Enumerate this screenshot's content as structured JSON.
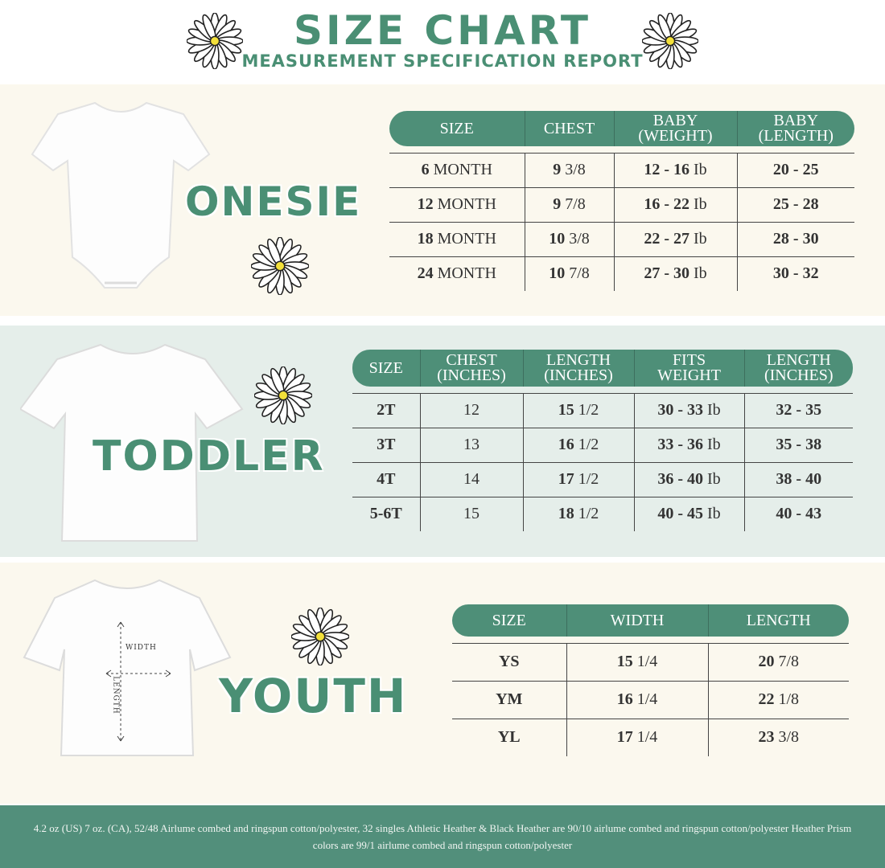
{
  "header": {
    "title": "SIZE CHART",
    "subtitle": "MEASUREMENT SPECIFICATION REPORT"
  },
  "colors": {
    "accent": "#4e8f78",
    "cream": "#fbf8ee",
    "mint": "#e5eeea"
  },
  "onesie": {
    "label": "ONESIE",
    "headers": [
      [
        "SIZE",
        ""
      ],
      [
        "CHEST",
        ""
      ],
      [
        "BABY",
        "(WEIGHT)"
      ],
      [
        "BABY",
        "(LENGTH)"
      ]
    ],
    "rows": [
      [
        [
          "6",
          "MONTH"
        ],
        [
          "9",
          "3/8"
        ],
        [
          "12 - 16",
          "Ib"
        ],
        [
          "20 - 25",
          ""
        ]
      ],
      [
        [
          "12",
          "MONTH"
        ],
        [
          "9",
          "7/8"
        ],
        [
          "16 - 22",
          "Ib"
        ],
        [
          "25 - 28",
          ""
        ]
      ],
      [
        [
          "18",
          "MONTH"
        ],
        [
          "10",
          "3/8"
        ],
        [
          "22 - 27",
          "Ib"
        ],
        [
          "28 - 30",
          ""
        ]
      ],
      [
        [
          "24",
          "MONTH"
        ],
        [
          "10",
          "7/8"
        ],
        [
          "27 - 30",
          "Ib"
        ],
        [
          "30 - 32",
          ""
        ]
      ]
    ]
  },
  "toddler": {
    "label": "TODDLER",
    "headers": [
      [
        "SIZE",
        ""
      ],
      [
        "CHEST",
        "(INCHES)"
      ],
      [
        "LENGTH",
        "(INCHES)"
      ],
      [
        "FITS",
        "WEIGHT"
      ],
      [
        "LENGTH",
        "(INCHES)"
      ]
    ],
    "rows": [
      [
        [
          "2T",
          ""
        ],
        [
          "",
          "12"
        ],
        [
          "15",
          "1/2"
        ],
        [
          "30 - 33",
          "Ib"
        ],
        [
          "32 - 35",
          ""
        ]
      ],
      [
        [
          "3T",
          ""
        ],
        [
          "",
          "13"
        ],
        [
          "16",
          "1/2"
        ],
        [
          "33 - 36",
          "Ib"
        ],
        [
          "35 - 38",
          ""
        ]
      ],
      [
        [
          "4T",
          ""
        ],
        [
          "",
          "14"
        ],
        [
          "17",
          "1/2"
        ],
        [
          "36 - 40",
          "Ib"
        ],
        [
          "38 - 40",
          ""
        ]
      ],
      [
        [
          "5-6T",
          ""
        ],
        [
          "",
          "15"
        ],
        [
          "18",
          "1/2"
        ],
        [
          "40 - 45",
          "Ib"
        ],
        [
          "40 - 43",
          ""
        ]
      ]
    ]
  },
  "youth": {
    "label": "YOUTH",
    "width_label": "WIDTH",
    "length_label": "LENGTH",
    "headers": [
      [
        "SIZE",
        ""
      ],
      [
        "WIDTH",
        ""
      ],
      [
        "LENGTH",
        ""
      ]
    ],
    "rows": [
      [
        [
          "YS",
          ""
        ],
        [
          "15",
          "1/4"
        ],
        [
          "20",
          "7/8"
        ]
      ],
      [
        [
          "YM",
          ""
        ],
        [
          "16",
          "1/4"
        ],
        [
          "22",
          "1/8"
        ]
      ],
      [
        [
          "YL",
          ""
        ],
        [
          "17",
          "1/4"
        ],
        [
          "23",
          "3/8"
        ]
      ]
    ]
  },
  "footer": {
    "text": "4.2 oz (US) 7 oz. (CA), 52/48 Airlume combed and ringspun cotton/polyester, 32 singles Athletic Heather & Black Heather are 90/10 airlume combed and ringspun cotton/polyester Heather Prism colors are 99/1 airlume combed and ringspun cotton/polyester"
  }
}
